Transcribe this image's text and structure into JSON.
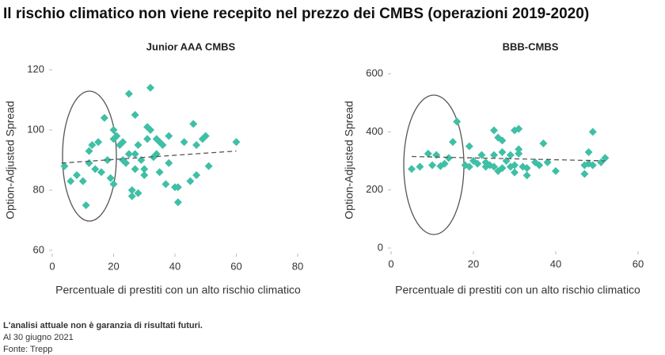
{
  "title": "Il rischio climatico non viene recepito nel prezzo dei CMBS (operazioni 2019-2020)",
  "notes": [
    "L'analisi attuale non è garanzia di risultati futuri.",
    "Al 30 giugno 2021",
    "Fonte: Trepp"
  ],
  "chart_data": [
    {
      "type": "scatter",
      "title": "Junior AAA CMBS",
      "xlabel": "Percentuale di prestiti con un alto rischio climatico",
      "ylabel": "Option-Adjusted Spread",
      "color": "#3fbfa6",
      "x": [
        4,
        6,
        8,
        10,
        11,
        12,
        12,
        13,
        14,
        15,
        16,
        17,
        18,
        19,
        20,
        20,
        20,
        21,
        22,
        23,
        23,
        24,
        25,
        25,
        26,
        26,
        27,
        27,
        27,
        28,
        28,
        29,
        30,
        30,
        31,
        31,
        32,
        32,
        33,
        34,
        34,
        35,
        35,
        36,
        37,
        38,
        38,
        40,
        41,
        41,
        43,
        45,
        46,
        47,
        47,
        49,
        50,
        51,
        60
      ],
      "values": [
        88,
        83,
        85,
        83,
        75,
        93,
        89,
        95,
        87,
        96,
        86,
        104,
        90,
        84,
        82,
        100,
        97,
        98,
        95,
        90,
        96,
        89,
        92,
        112,
        80,
        78,
        105,
        92,
        87,
        95,
        79,
        90,
        87,
        85,
        101,
        97,
        114,
        100,
        91,
        92,
        97,
        86,
        96,
        95,
        82,
        98,
        89,
        81,
        81,
        76,
        96,
        83,
        102,
        85,
        95,
        97,
        98,
        88,
        96
      ],
      "trendline": {
        "x": [
          3,
          60
        ],
        "values": [
          89,
          93
        ]
      },
      "xlim": [
        0,
        80
      ],
      "xticks": [
        0,
        20,
        40,
        60,
        80
      ],
      "ylim": [
        60,
        120
      ],
      "yticks": [
        60,
        80,
        100,
        120
      ]
    },
    {
      "type": "scatter",
      "title": "BBB-CMBS",
      "xlabel": "Percentuale di prestiti con un alto rischio climatico",
      "ylabel": "Option-Adjusted Spread",
      "color": "#3fbfa6",
      "x": [
        5,
        7,
        9,
        10,
        11,
        12,
        13,
        14,
        15,
        16,
        18,
        19,
        19,
        20,
        21,
        22,
        23,
        23,
        24,
        25,
        25,
        25,
        26,
        26,
        27,
        27,
        27,
        28,
        29,
        29,
        30,
        30,
        30,
        31,
        31,
        31,
        32,
        33,
        33,
        35,
        36,
        37,
        38,
        40,
        47,
        47,
        48,
        48,
        49,
        49,
        51,
        52
      ],
      "values": [
        272,
        280,
        325,
        285,
        320,
        282,
        290,
        310,
        365,
        435,
        285,
        350,
        280,
        300,
        290,
        320,
        295,
        280,
        285,
        280,
        320,
        405,
        265,
        380,
        275,
        330,
        370,
        300,
        280,
        320,
        285,
        405,
        260,
        410,
        340,
        325,
        280,
        275,
        250,
        295,
        285,
        360,
        295,
        265,
        285,
        255,
        330,
        290,
        400,
        285,
        295,
        310
      ],
      "trendline": {
        "x": [
          5,
          52
        ],
        "values": [
          315,
          300
        ]
      },
      "xlim": [
        0,
        60
      ],
      "xticks": [
        0,
        20,
        40,
        60
      ],
      "ylim": [
        0,
        600
      ],
      "yticks": [
        0,
        200,
        400,
        600
      ]
    }
  ]
}
